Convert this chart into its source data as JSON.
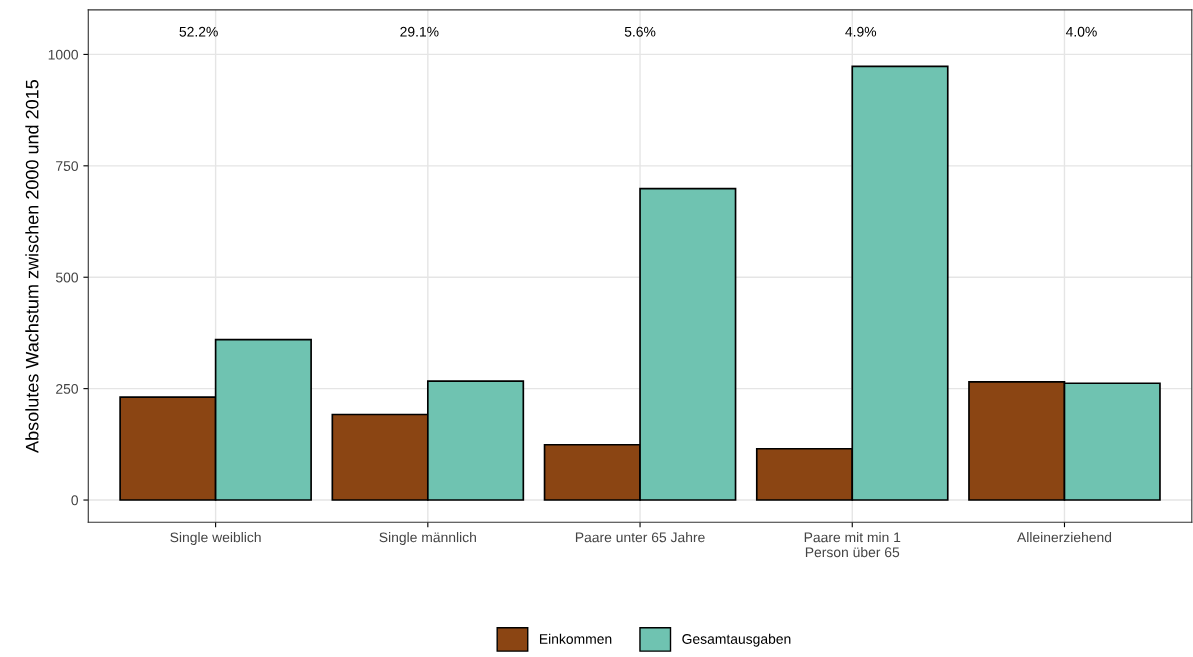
{
  "chart_data": {
    "type": "bar",
    "ylabel": "Absolutes Wachstum zwischen 2000 und 2015",
    "categories": [
      "Single weiblich",
      "Single männlich",
      "Paare unter 65 Jahre",
      "Paare mit min 1\nPerson über 65",
      "Alleinerziehend"
    ],
    "series": [
      {
        "name": "Einkommen",
        "color": "#8b4513",
        "values": [
          231,
          192,
          124,
          115,
          265
        ]
      },
      {
        "name": "Gesamtausgaben",
        "color": "#6fc3b1",
        "values": [
          360,
          267,
          699,
          973,
          262
        ]
      }
    ],
    "annotations": [
      "52.2%",
      "29.1%",
      "5.6%",
      "4.9%",
      "4.0%"
    ],
    "ylim": [
      -50,
      1100
    ],
    "yticks": [
      0,
      250,
      500,
      750,
      1000
    ],
    "grid": true,
    "legend": "bottom"
  }
}
